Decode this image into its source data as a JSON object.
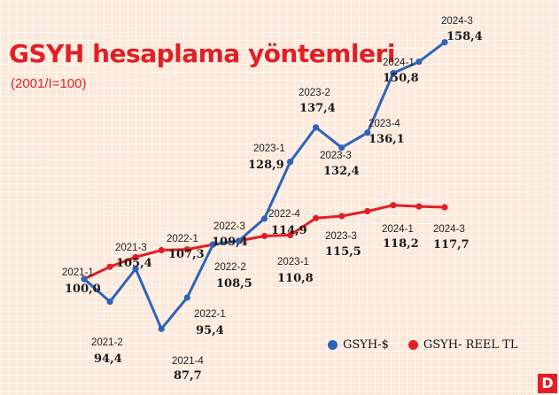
{
  "title": "GSYH hesaplama yöntemleri",
  "subtitle": "(2001/I=100)",
  "logo": "D",
  "colors": {
    "usd": "#2f63b8",
    "real": "#e21f26",
    "title": "#e21f26"
  },
  "chart_data": {
    "type": "line",
    "title": "GSYH hesaplama yöntemleri",
    "subtitle": "(2001/I=100)",
    "legend_position": "bottom-right",
    "grid": true,
    "ylim": [
      80,
      165
    ],
    "series": [
      {
        "name": "GSYH-$",
        "color": "#2f63b8",
        "points": [
          {
            "x": "2021-1",
            "y": 100.0
          },
          {
            "x": "2021-2",
            "y": 94.4
          },
          {
            "x": "2021-3",
            "y": 102.5
          },
          {
            "x": "2021-4",
            "y": 87.7
          },
          {
            "x": "2022-1",
            "y": 95.4
          },
          {
            "x": "2022-2",
            "y": 108.5
          },
          {
            "x": "2022-3",
            "y": 109.4
          },
          {
            "x": "2022-4",
            "y": 114.9
          },
          {
            "x": "2023-1",
            "y": 128.9
          },
          {
            "x": "2023-2",
            "y": 137.4
          },
          {
            "x": "2023-3",
            "y": 132.4
          },
          {
            "x": "2023-4",
            "y": 136.1
          },
          {
            "x": "2024-1",
            "y": 150.8
          },
          {
            "x": "2024-2",
            "y": 153.6
          },
          {
            "x": "2024-3",
            "y": 158.4
          }
        ]
      },
      {
        "name": "GSYH- REEL TL",
        "color": "#e21f26",
        "points": [
          {
            "x": "2021-1",
            "y": 100.0
          },
          {
            "x": "2021-2",
            "y": 103.0
          },
          {
            "x": "2021-3",
            "y": 105.4
          },
          {
            "x": "2021-4",
            "y": 107.1
          },
          {
            "x": "2022-1",
            "y": 107.3
          },
          {
            "x": "2022-2",
            "y": 108.5
          },
          {
            "x": "2022-3",
            "y": 109.4
          },
          {
            "x": "2022-4",
            "y": 110.6
          },
          {
            "x": "2023-1",
            "y": 110.8
          },
          {
            "x": "2023-2",
            "y": 115.0
          },
          {
            "x": "2023-3",
            "y": 115.5
          },
          {
            "x": "2023-4",
            "y": 116.7
          },
          {
            "x": "2024-1",
            "y": 118.2
          },
          {
            "x": "2024-2",
            "y": 117.9
          },
          {
            "x": "2024-3",
            "y": 117.7
          }
        ]
      }
    ],
    "annotations": [
      {
        "period": "2021-1",
        "value": "100,0"
      },
      {
        "period": "2021-2",
        "value": "94,4"
      },
      {
        "period": "2021-3",
        "value": "105,4"
      },
      {
        "period": "2021-4",
        "value": "87,7"
      },
      {
        "period": "2022-1",
        "value": "107,3"
      },
      {
        "period": "2022-1",
        "value": "95,4"
      },
      {
        "period": "2022-2",
        "value": "108,5"
      },
      {
        "period": "2022-3",
        "value": "109,4"
      },
      {
        "period": "2022-4",
        "value": "114,9"
      },
      {
        "period": "2023-1",
        "value": "110,8"
      },
      {
        "period": "2023-1",
        "value": "128,9"
      },
      {
        "period": "2023-2",
        "value": "137,4"
      },
      {
        "period": "2023-3",
        "value": "132,4"
      },
      {
        "period": "2023-3",
        "value": "115,5"
      },
      {
        "period": "2023-4",
        "value": "136,1"
      },
      {
        "period": "2024-1",
        "value": "150,8"
      },
      {
        "period": "2024-1",
        "value": "118,2"
      },
      {
        "period": "2024-3",
        "value": "158,4"
      },
      {
        "period": "2024-3",
        "value": "117,7"
      }
    ]
  }
}
